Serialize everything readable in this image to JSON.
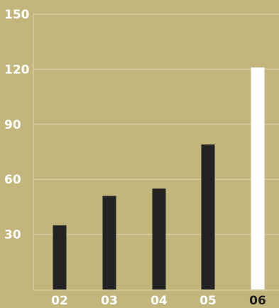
{
  "colors": {
    "background": "#c2b67d",
    "grid": "#d4cc9e",
    "bar": "#232323",
    "bar_highlight": "#ffffff",
    "tick_text": "#ffffff",
    "tick_text_highlight": "#1e1e1e"
  },
  "chart_data": {
    "type": "bar",
    "categories": [
      "02",
      "03",
      "04",
      "05",
      "06"
    ],
    "values": [
      35,
      51,
      55,
      79,
      121
    ],
    "highlight_category": "06",
    "title": "",
    "xlabel": "",
    "ylabel": "",
    "ylim": [
      0,
      150
    ],
    "yticks": [
      30,
      60,
      90,
      120,
      150
    ],
    "ytick_labels": [
      "30",
      "60",
      "90",
      "120",
      "150"
    ],
    "grid": true,
    "legend": "none"
  }
}
